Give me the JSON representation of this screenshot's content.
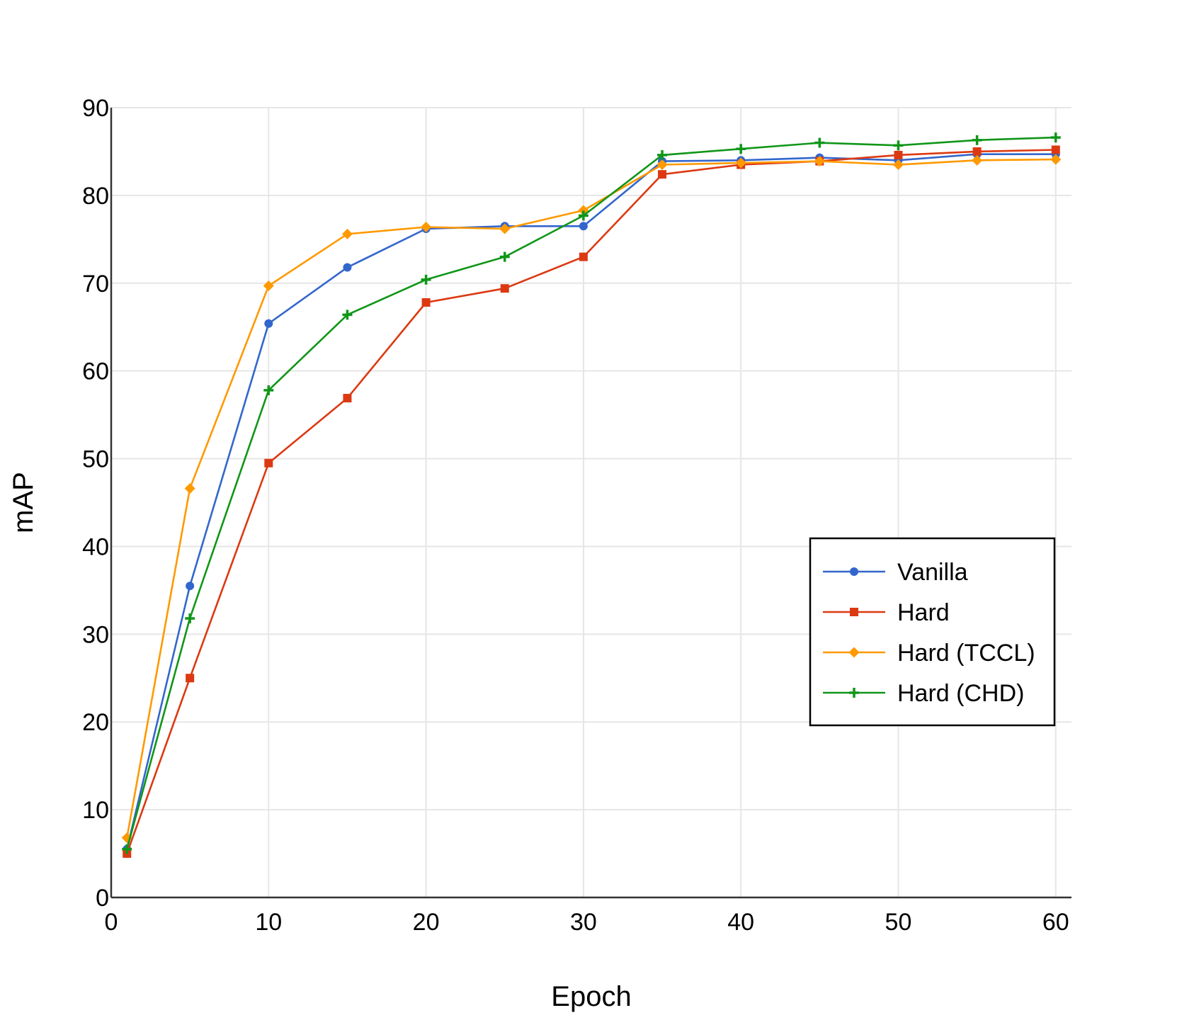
{
  "chart_data": {
    "type": "line",
    "title": "",
    "xlabel": "Epoch",
    "ylabel": "mAP",
    "xlim": [
      0,
      61
    ],
    "ylim": [
      0,
      90
    ],
    "xticks": [
      0,
      10,
      20,
      30,
      40,
      50,
      60
    ],
    "yticks": [
      0,
      10,
      20,
      30,
      40,
      50,
      60,
      70,
      80,
      90
    ],
    "grid": true,
    "legend_position": "center-right",
    "x": [
      1,
      5,
      10,
      15,
      20,
      25,
      30,
      35,
      40,
      45,
      50,
      55,
      60
    ],
    "series": [
      {
        "name": "Vanilla",
        "color": "#3366cc",
        "marker": "circle",
        "values": [
          5.5,
          35.5,
          65.4,
          71.8,
          76.2,
          76.5,
          76.5,
          83.9,
          84.0,
          84.3,
          84.0,
          84.7,
          84.7
        ]
      },
      {
        "name": "Hard",
        "color": "#dc3912",
        "marker": "square",
        "values": [
          5.0,
          25.0,
          49.5,
          56.9,
          67.8,
          69.4,
          73.0,
          82.4,
          83.5,
          83.9,
          84.6,
          85.0,
          85.2
        ]
      },
      {
        "name": "Hard (TCCL)",
        "color": "#ff9900",
        "marker": "diamond",
        "values": [
          6.8,
          46.6,
          69.7,
          75.6,
          76.4,
          76.2,
          78.3,
          83.5,
          83.7,
          83.9,
          83.5,
          84.0,
          84.1
        ]
      },
      {
        "name": "Hard (CHD)",
        "color": "#109618",
        "marker": "plus",
        "values": [
          5.5,
          31.8,
          57.8,
          66.4,
          70.4,
          73.0,
          77.7,
          84.6,
          85.3,
          86.0,
          85.7,
          86.3,
          86.6
        ]
      }
    ]
  }
}
